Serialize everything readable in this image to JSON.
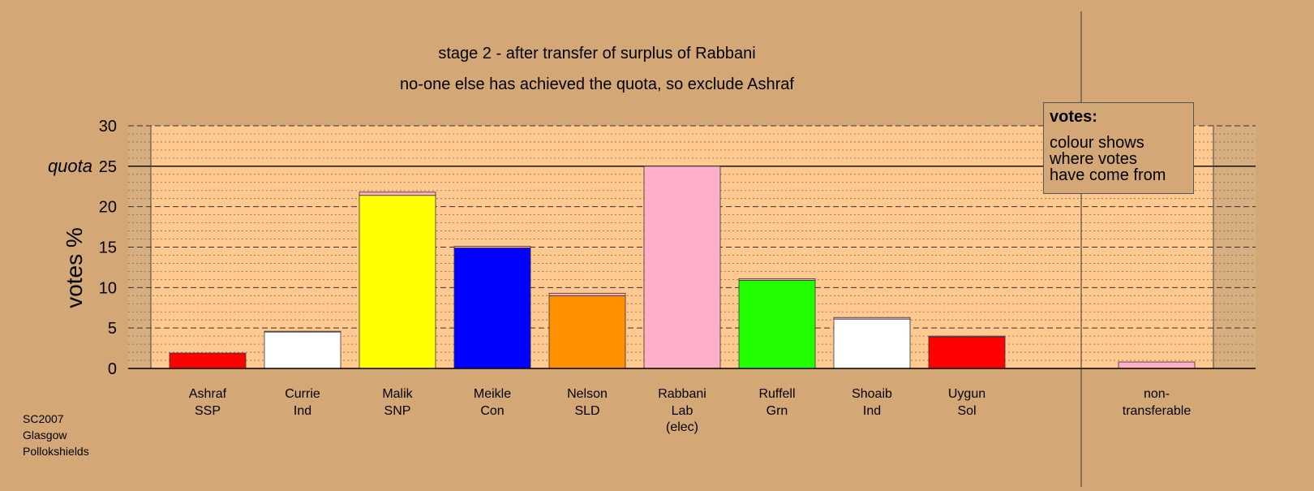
{
  "chart_data": {
    "type": "bar",
    "title": "stage 2 - after transfer of surplus of Rabbani",
    "subtitle": "no-one else has achieved the quota, so exclude Ashraf",
    "ylabel": "votes %",
    "ylim": [
      0,
      30
    ],
    "yticks": [
      0,
      5,
      10,
      15,
      20,
      25,
      30
    ],
    "quota": 25,
    "quota_label": "quota",
    "candidates": [
      {
        "name": "Ashraf",
        "party": "SSP",
        "extra": "",
        "value": 1.9,
        "color": "#FF0000",
        "transfer": 0.0
      },
      {
        "name": "Currie",
        "party": "Ind",
        "extra": "",
        "value": 4.5,
        "color": "#FFFFFF",
        "transfer": 0.1
      },
      {
        "name": "Malik",
        "party": "SNP",
        "extra": "",
        "value": 21.4,
        "color": "#FFFF00",
        "transfer": 0.4
      },
      {
        "name": "Meikle",
        "party": "Con",
        "extra": "",
        "value": 14.9,
        "color": "#0000FF",
        "transfer": 0.2
      },
      {
        "name": "Nelson",
        "party": "SLD",
        "extra": "",
        "value": 9.0,
        "color": "#FF9000",
        "transfer": 0.3
      },
      {
        "name": "Rabbani",
        "party": "Lab",
        "extra": "(elec)",
        "value": 25.0,
        "color": "#FFB0C8",
        "transfer": 0.0
      },
      {
        "name": "Ruffell",
        "party": "Grn",
        "extra": "",
        "value": 10.9,
        "color": "#22FF00",
        "transfer": 0.2
      },
      {
        "name": "Shoaib",
        "party": "Ind",
        "extra": "",
        "value": 6.1,
        "color": "#FFFFFF",
        "transfer": 0.2
      },
      {
        "name": "Uygun",
        "party": "Sol",
        "extra": "",
        "value": 3.9,
        "color": "#FF0000",
        "transfer": 0.1
      }
    ],
    "nontransferable": {
      "name": "non-",
      "party": "transferable",
      "extra": "",
      "value": 0.8,
      "color": "#FFB0C8"
    },
    "colors": {
      "background": "#D4A876",
      "plot_area": "#FFC990",
      "plot_side": "#D6AE80",
      "transfer": "#FFB0C8"
    }
  },
  "legend": {
    "title": "votes:",
    "lines": [
      "colour shows",
      "where votes",
      "have come from"
    ]
  },
  "caption": {
    "lines": [
      "SC2007",
      "Glasgow",
      "Pollokshields"
    ]
  }
}
